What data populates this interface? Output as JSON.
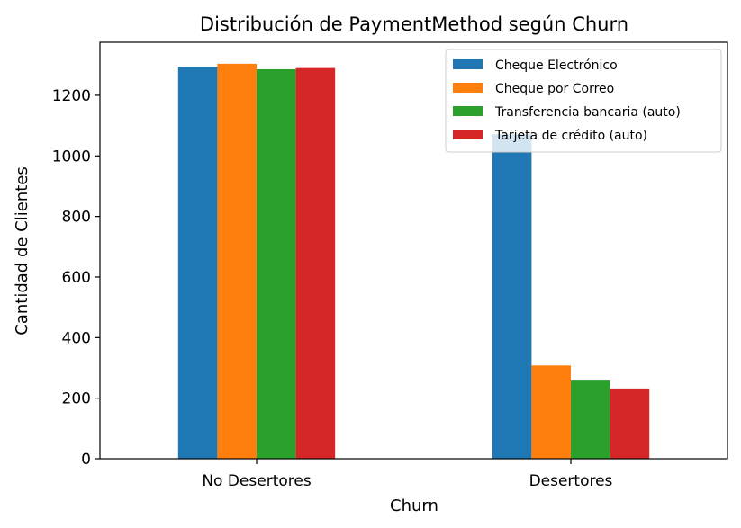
{
  "chart_data": {
    "type": "bar",
    "title": "Distribución de PaymentMethod según Churn",
    "xlabel": "Churn",
    "ylabel": "Cantidad de Clientes",
    "categories": [
      "No Desertores",
      "Desertores"
    ],
    "ylim": [
      0,
      1375
    ],
    "yticks": [
      0,
      200,
      400,
      600,
      800,
      1000,
      1200
    ],
    "grid": false,
    "legend_position": "top-right",
    "series": [
      {
        "name": "Cheque Electrónico",
        "color": "#1f77b4",
        "values": [
          1294,
          1071
        ]
      },
      {
        "name": "Cheque por Correo",
        "color": "#ff7f0e",
        "values": [
          1304,
          308
        ]
      },
      {
        "name": "Transferencia bancaria (auto)",
        "color": "#2ca02c",
        "values": [
          1286,
          258
        ]
      },
      {
        "name": "Tarjeta de crédito (auto)",
        "color": "#d62728",
        "values": [
          1290,
          232
        ]
      }
    ]
  }
}
